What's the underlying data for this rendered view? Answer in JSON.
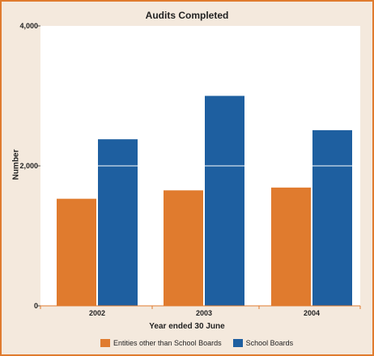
{
  "chart_data": {
    "type": "bar",
    "title": "Audits Completed",
    "xlabel": "Year ended 30 June",
    "ylabel": "Number",
    "categories": [
      "2002",
      "2003",
      "2004"
    ],
    "series": [
      {
        "name": "Entities other than School Boards",
        "values": [
          1530,
          1650,
          1690
        ],
        "color": "#e07b2e"
      },
      {
        "name": "School Boards",
        "values": [
          2380,
          3000,
          2510
        ],
        "color": "#1e5fa0"
      }
    ],
    "ylim": [
      0,
      4000
    ],
    "yticks": [
      {
        "value": 0,
        "label": "0"
      },
      {
        "value": 2000,
        "label": "2,000"
      },
      {
        "value": 4000,
        "label": "4,000"
      }
    ],
    "gridline_value": 2000,
    "legend_position": "bottom"
  }
}
